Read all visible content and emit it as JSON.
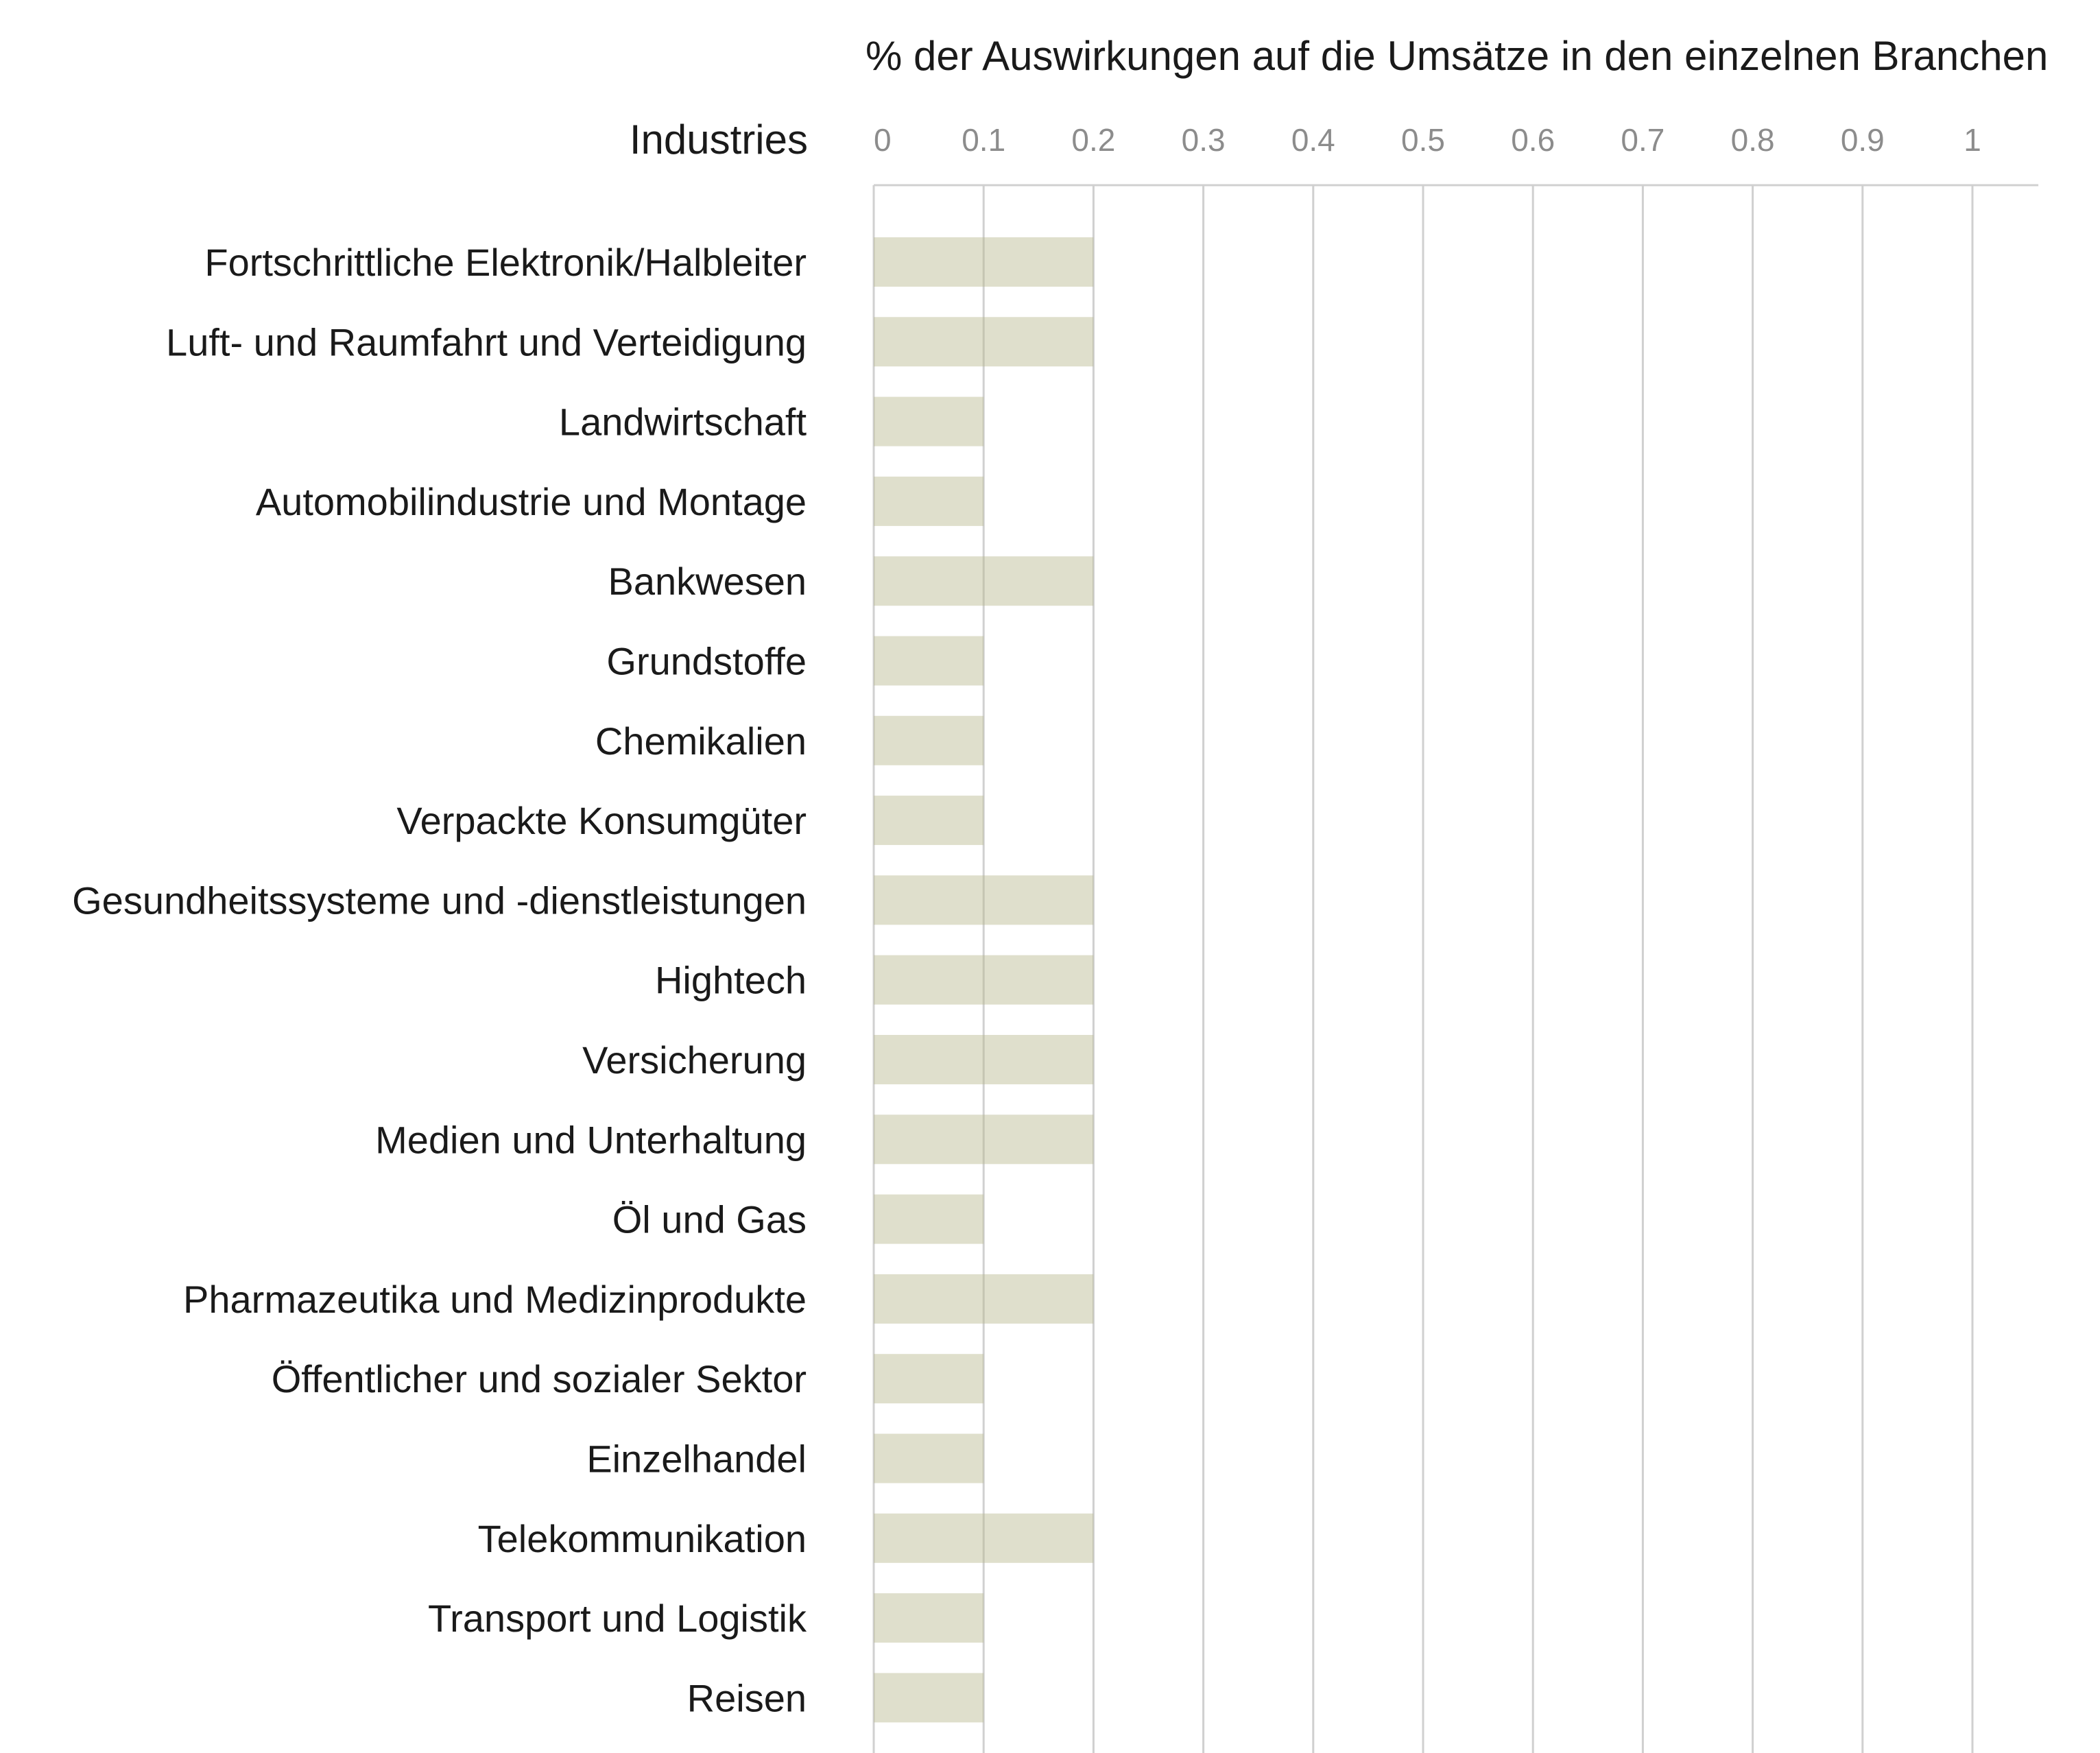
{
  "chart_data": {
    "type": "bar",
    "orientation": "horizontal",
    "title": "% der Auswirkungen auf die Umsätze in den einzelnen Branchen",
    "category_header": "Industries",
    "categories": [
      "Fortschrittliche Elektronik/Halbleiter",
      "Luft- und Raumfahrt und Verteidigung",
      "Landwirtschaft",
      "Automobilindustrie und Montage",
      "Bankwesen",
      "Grundstoffe",
      "Chemikalien",
      "Verpackte Konsumgüter",
      "Gesundheitssysteme und -dienstleistungen",
      "Hightech",
      "Versicherung",
      "Medien und Unterhaltung",
      "Öl und Gas",
      "Pharmazeutika und Medizinprodukte",
      "Öffentlicher und sozialer Sektor",
      "Einzelhandel",
      "Telekommunikation",
      "Transport und Logistik",
      "Reisen"
    ],
    "values": [
      0.2,
      0.2,
      0.1,
      0.1,
      0.2,
      0.1,
      0.1,
      0.1,
      0.2,
      0.2,
      0.2,
      0.2,
      0.1,
      0.2,
      0.1,
      0.1,
      0.2,
      0.1,
      0.1
    ],
    "xlim": [
      0,
      1.06
    ],
    "xticks": [
      0,
      0.1,
      0.2,
      0.3,
      0.4,
      0.5,
      0.6,
      0.7,
      0.8,
      0.9,
      1
    ],
    "xtick_labels": [
      "0",
      "0.1",
      "0.2",
      "0.3",
      "0.4",
      "0.5",
      "0.6",
      "0.7",
      "0.8",
      "0.9",
      "1"
    ],
    "axis_position": "top",
    "grid": true,
    "bar_color": "#b9b88f",
    "bar_opacity": 0.45,
    "grid_color": "#d0d0d0"
  }
}
